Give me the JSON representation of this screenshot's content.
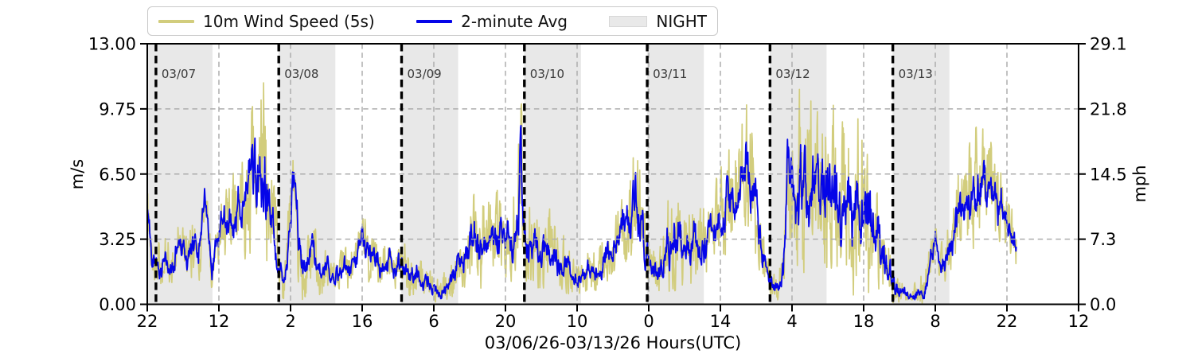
{
  "legend": {
    "items": [
      {
        "label": "10m Wind Speed (5s)",
        "type": "line",
        "color": "#d2cd7d"
      },
      {
        "label": "2-minute Avg",
        "type": "line",
        "color": "#0505e8"
      },
      {
        "label": "NIGHT",
        "type": "patch",
        "color": "#e9e9e9"
      }
    ]
  },
  "chart_data": {
    "type": "line",
    "title": "",
    "xlabel": "03/06/26-03/13/26  Hours(UTC)",
    "ylabel_left": "m/s",
    "ylabel_right": "mph",
    "ylim": [
      0,
      13
    ],
    "ylim_right": [
      0.0,
      29.1
    ],
    "grid": true,
    "legend_position": "top",
    "x_hours_span": 182,
    "data_t_start": 0,
    "data_t_end": 169.9,
    "x_ticks": [
      {
        "t": 0,
        "label": "22"
      },
      {
        "t": 14,
        "label": "12"
      },
      {
        "t": 28,
        "label": "2"
      },
      {
        "t": 42,
        "label": "16"
      },
      {
        "t": 56,
        "label": "6"
      },
      {
        "t": 70,
        "label": "20"
      },
      {
        "t": 84,
        "label": "10"
      },
      {
        "t": 98,
        "label": "0"
      },
      {
        "t": 112,
        "label": "14"
      },
      {
        "t": 126,
        "label": "4"
      },
      {
        "t": 140,
        "label": "18"
      },
      {
        "t": 154,
        "label": "8"
      },
      {
        "t": 168,
        "label": "22"
      },
      {
        "t": 182,
        "label": "12"
      }
    ],
    "y_ticks": [
      {
        "v": 0,
        "left": "0.00",
        "right": "0.0"
      },
      {
        "v": 3.25,
        "left": "3.25",
        "right": "7.3"
      },
      {
        "v": 6.5,
        "left": "6.50",
        "right": "14.5"
      },
      {
        "v": 9.75,
        "left": "9.75",
        "right": "21.8"
      },
      {
        "v": 13,
        "left": "13.00",
        "right": "29.1"
      }
    ],
    "grid_v_values": [
      3.25,
      6.5,
      9.75
    ],
    "day_lines": [
      {
        "t": 1.7,
        "label": "03/07"
      },
      {
        "t": 25.7,
        "label": "03/08"
      },
      {
        "t": 49.7,
        "label": "03/09"
      },
      {
        "t": 73.7,
        "label": "03/10"
      },
      {
        "t": 97.7,
        "label": "03/11"
      },
      {
        "t": 121.7,
        "label": "03/12"
      },
      {
        "t": 145.7,
        "label": "03/13"
      }
    ],
    "night_bands": [
      [
        0,
        12.75
      ],
      [
        25.65,
        36.75
      ],
      [
        49.65,
        60.75
      ],
      [
        73.65,
        84.75
      ],
      [
        97.65,
        108.75
      ],
      [
        121.65,
        132.75
      ],
      [
        145.65,
        156.75
      ]
    ],
    "night_color": "#e8e8e8",
    "series": [
      {
        "name": "10m Wind Speed (5s)",
        "color": "#d2cd7d",
        "role": "gust"
      },
      {
        "name": "2-minute Avg",
        "color": "#0505e8",
        "role": "avg"
      }
    ],
    "series_keypoints_format": [
      "t_hours_after_0306_2200UTC",
      "avg_ms",
      "gust_peak_ms"
    ],
    "series_keypoints": [
      [
        0,
        4.6,
        6.2
      ],
      [
        0.5,
        3.2,
        5.0
      ],
      [
        1,
        2.4,
        3.8
      ],
      [
        2,
        2.2,
        3.4
      ],
      [
        2.9,
        1.4,
        2.6
      ],
      [
        3.6,
        2.2,
        3.4
      ],
      [
        4.4,
        1.8,
        3.1
      ],
      [
        5.2,
        2.0,
        3.3
      ],
      [
        6.3,
        3.3,
        5.2
      ],
      [
        7,
        2.9,
        4.5
      ],
      [
        7.9,
        1.9,
        3.2
      ],
      [
        8.7,
        2.6,
        4.2
      ],
      [
        9.5,
        2.9,
        5.0
      ],
      [
        10.3,
        2.8,
        4.5
      ],
      [
        11.2,
        5.6,
        6.6
      ],
      [
        11.9,
        3.3,
        5.0
      ],
      [
        12.6,
        1.0,
        2.2
      ],
      [
        13.4,
        3.1,
        4.6
      ],
      [
        14.2,
        3.7,
        5.5
      ],
      [
        15,
        4.1,
        6.0
      ],
      [
        16,
        4.4,
        6.7
      ],
      [
        17,
        4.0,
        6.4
      ],
      [
        18,
        4.7,
        7.3
      ],
      [
        19,
        5.1,
        8.2
      ],
      [
        20,
        5.4,
        8.9
      ],
      [
        20.8,
        5.9,
        9.8
      ],
      [
        21.5,
        6.5,
        10.9
      ],
      [
        22.3,
        6.8,
        11.5
      ],
      [
        23,
        6.5,
        11.9
      ],
      [
        23.6,
        5.3,
        9.4
      ],
      [
        24.3,
        4.2,
        7.2
      ],
      [
        25.1,
        3.1,
        5.4
      ],
      [
        25.8,
        1.5,
        3.0
      ],
      [
        26.5,
        1.0,
        2.1
      ],
      [
        27.4,
        2.4,
        4.2
      ],
      [
        28.3,
        5.6,
        7.9
      ],
      [
        28.8,
        5.8,
        8.0
      ],
      [
        29.6,
        2.7,
        5.2
      ],
      [
        30.6,
        1.6,
        3.1
      ],
      [
        31.6,
        2.2,
        3.6
      ],
      [
        32.5,
        2.9,
        4.4
      ],
      [
        33.5,
        1.6,
        3.0
      ],
      [
        34.5,
        1.3,
        2.5
      ],
      [
        35.5,
        1.8,
        3.0
      ],
      [
        36.6,
        1.1,
        2.3
      ],
      [
        37.6,
        1.5,
        2.8
      ],
      [
        38.6,
        1.7,
        3.0
      ],
      [
        40,
        1.9,
        3.3
      ],
      [
        41,
        2.6,
        4.0
      ],
      [
        41.9,
        3.7,
        4.9
      ],
      [
        43,
        2.2,
        4.0
      ],
      [
        44.5,
        2.3,
        3.7
      ],
      [
        46,
        1.7,
        3.1
      ],
      [
        47.5,
        2.3,
        3.8
      ],
      [
        48.7,
        1.8,
        3.2
      ],
      [
        50.5,
        1.9,
        3.3
      ],
      [
        52,
        1.5,
        2.7
      ],
      [
        54,
        1.1,
        2.1
      ],
      [
        55.5,
        0.8,
        1.7
      ],
      [
        57,
        0.55,
        1.3
      ],
      [
        58.3,
        0.8,
        1.7
      ],
      [
        59.6,
        1.3,
        2.4
      ],
      [
        61,
        1.9,
        3.3
      ],
      [
        62.3,
        2.5,
        4.3
      ],
      [
        63.3,
        3.0,
        5.6
      ],
      [
        64.6,
        3.3,
        6.2
      ],
      [
        65.8,
        2.7,
        4.8
      ],
      [
        67,
        3.1,
        5.3
      ],
      [
        68.3,
        3.7,
        5.9
      ],
      [
        69.5,
        3.4,
        5.6
      ],
      [
        70.7,
        3.1,
        5.3
      ],
      [
        71.8,
        3.5,
        6.1
      ],
      [
        72.55,
        4.4,
        8.0
      ],
      [
        72.95,
        7.6,
        11.2
      ],
      [
        73.4,
        4.1,
        7.3
      ],
      [
        74.2,
        3.0,
        5.2
      ],
      [
        75.5,
        2.7,
        4.7
      ],
      [
        77,
        2.5,
        4.5
      ],
      [
        78.5,
        2.8,
        4.7
      ],
      [
        80,
        2.3,
        4.1
      ],
      [
        81.5,
        1.9,
        3.5
      ],
      [
        83,
        1.5,
        2.7
      ],
      [
        84.1,
        0.75,
        1.7
      ],
      [
        85.2,
        1.3,
        2.3
      ],
      [
        86.5,
        1.8,
        3.1
      ],
      [
        88,
        1.5,
        2.7
      ],
      [
        89.5,
        2.2,
        3.7
      ],
      [
        91,
        2.8,
        4.5
      ],
      [
        92.5,
        3.4,
        5.5
      ],
      [
        94,
        4.1,
        6.6
      ],
      [
        95.3,
        4.9,
        8.0
      ],
      [
        96.3,
        4.3,
        7.2
      ],
      [
        97.3,
        2.9,
        5.2
      ],
      [
        98.3,
        1.9,
        3.4
      ],
      [
        99.6,
        1.7,
        3.1
      ],
      [
        101,
        2.2,
        4.1
      ],
      [
        102.5,
        2.7,
        5.5
      ],
      [
        103.8,
        3.3,
        5.8
      ],
      [
        104.8,
        2.5,
        4.7
      ],
      [
        106,
        2.8,
        5.1
      ],
      [
        107.3,
        3.1,
        5.4
      ],
      [
        108.6,
        3.0,
        5.2
      ],
      [
        110,
        3.3,
        5.7
      ],
      [
        111.5,
        3.9,
        6.5
      ],
      [
        113,
        4.5,
        7.3
      ],
      [
        114.5,
        5.0,
        8.0
      ],
      [
        116,
        5.7,
        9.3
      ],
      [
        117.2,
        7.2,
        10.3
      ],
      [
        118,
        5.9,
        9.0
      ],
      [
        119,
        4.6,
        7.4
      ],
      [
        120,
        3.1,
        5.5
      ],
      [
        121,
        1.7,
        3.1
      ],
      [
        122,
        0.9,
        1.9
      ],
      [
        123.2,
        0.75,
        1.6
      ],
      [
        124.3,
        1.5,
        3.2
      ],
      [
        124.75,
        3.5,
        6.5
      ],
      [
        125.1,
        7.8,
        12.0
      ],
      [
        125.6,
        6.2,
        10.6
      ],
      [
        126.5,
        5.9,
        10.3
      ],
      [
        127.5,
        5.6,
        10.4
      ],
      [
        129,
        5.4,
        10.1
      ],
      [
        130.5,
        5.7,
        10.5
      ],
      [
        132,
        5.3,
        10.0
      ],
      [
        133.5,
        5.5,
        10.3
      ],
      [
        135,
        5.1,
        9.7
      ],
      [
        136.5,
        4.9,
        9.4
      ],
      [
        138,
        4.6,
        9.0
      ],
      [
        139.5,
        4.3,
        8.5
      ],
      [
        141,
        3.8,
        7.6
      ],
      [
        142.5,
        3.0,
        6.3
      ],
      [
        143.8,
        2.4,
        5.2
      ],
      [
        145,
        1.4,
        3.3
      ],
      [
        146.2,
        0.7,
        1.7
      ],
      [
        147.5,
        0.45,
        1.1
      ],
      [
        149,
        0.4,
        1.0
      ],
      [
        150.5,
        0.5,
        1.3
      ],
      [
        151.8,
        0.7,
        1.7
      ],
      [
        153,
        2.2,
        3.6
      ],
      [
        154,
        3.3,
        4.5
      ],
      [
        155.2,
        1.8,
        3.2
      ],
      [
        156.2,
        2.5,
        4.1
      ],
      [
        157.5,
        3.3,
        5.2
      ],
      [
        158.8,
        4.3,
        6.9
      ],
      [
        160,
        4.9,
        7.7
      ],
      [
        161.3,
        5.5,
        8.5
      ],
      [
        162.5,
        5.9,
        8.8
      ],
      [
        163.5,
        6.3,
        8.9
      ],
      [
        164.7,
        6.0,
        8.6
      ],
      [
        166,
        5.3,
        7.9
      ],
      [
        167.3,
        4.4,
        6.6
      ],
      [
        168.5,
        3.5,
        5.1
      ],
      [
        169.4,
        3.0,
        4.4
      ],
      [
        169.9,
        2.9,
        4.0
      ]
    ],
    "noise": {
      "seed": 42,
      "dt": 0.08,
      "gust_up": 1.0,
      "gust_down": 0.85,
      "avg_up": 0.5,
      "avg_down": 0.42
    }
  },
  "date_label_color": "#3a3a3a",
  "grid_color": "#adadad",
  "frame_color": "#000000"
}
